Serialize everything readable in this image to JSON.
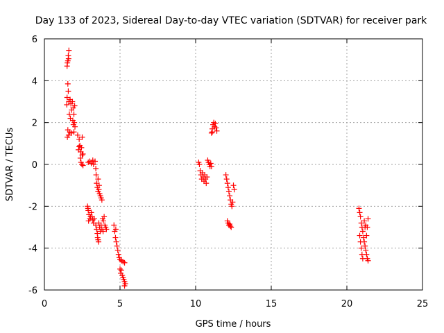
{
  "chart_data": {
    "type": "scatter",
    "title": "Day 133 of 2023, Sidereal Day-to-day VTEC variation (SDTVAR) for receiver park",
    "xlabel": "GPS time / hours",
    "ylabel": "SDTVAR / TECUs",
    "xlim": [
      0,
      25
    ],
    "ylim": [
      -6,
      6
    ],
    "xticks": [
      0,
      5,
      10,
      15,
      20,
      25
    ],
    "xtick_labels": [
      "0",
      "5",
      "10",
      "15",
      "20",
      "25"
    ],
    "yticks": [
      -6,
      -4,
      -2,
      0,
      2,
      4,
      6
    ],
    "ytick_labels": [
      "-6",
      "-4",
      "-2",
      "0",
      "2",
      "4",
      "6"
    ],
    "grid": true,
    "marker": "+",
    "series": [
      {
        "name": "SDTVAR",
        "color": "#ff0000",
        "points": [
          [
            1.5,
            4.7
          ],
          [
            1.55,
            4.95
          ],
          [
            1.58,
            5.2
          ],
          [
            1.62,
            5.45
          ],
          [
            1.6,
            5.05
          ],
          [
            1.52,
            4.85
          ],
          [
            1.55,
            3.85
          ],
          [
            1.58,
            3.5
          ],
          [
            1.5,
            3.2
          ],
          [
            1.62,
            3.0
          ],
          [
            1.48,
            2.85
          ],
          [
            1.7,
            3.1
          ],
          [
            1.75,
            2.9
          ],
          [
            1.8,
            2.6
          ],
          [
            1.85,
            3.0
          ],
          [
            1.9,
            2.7
          ],
          [
            1.95,
            2.4
          ],
          [
            2.0,
            2.8
          ],
          [
            1.72,
            2.2
          ],
          [
            1.88,
            2.1
          ],
          [
            1.65,
            2.4
          ],
          [
            1.92,
            1.9
          ],
          [
            1.98,
            2.0
          ],
          [
            2.02,
            1.8
          ],
          [
            1.55,
            1.65
          ],
          [
            1.6,
            1.4
          ],
          [
            1.52,
            1.3
          ],
          [
            1.68,
            1.55
          ],
          [
            1.8,
            1.5
          ],
          [
            1.95,
            1.55
          ],
          [
            2.2,
            1.4
          ],
          [
            2.3,
            1.2
          ],
          [
            2.35,
            0.9
          ],
          [
            2.25,
            0.7
          ],
          [
            2.4,
            0.6
          ],
          [
            2.45,
            0.8
          ],
          [
            2.5,
            1.3
          ],
          [
            2.55,
            0.5
          ],
          [
            2.38,
            0.3
          ],
          [
            2.42,
            0.1
          ],
          [
            2.48,
            0.0
          ],
          [
            2.55,
            -0.05
          ],
          [
            2.3,
            0.85
          ],
          [
            2.5,
            0.45
          ],
          [
            2.9,
            0.1
          ],
          [
            3.0,
            0.15
          ],
          [
            3.1,
            0.05
          ],
          [
            3.2,
            0.2
          ],
          [
            3.25,
            0.0
          ],
          [
            3.35,
            0.15
          ],
          [
            3.4,
            -0.2
          ],
          [
            3.42,
            -0.5
          ],
          [
            3.45,
            -0.9
          ],
          [
            3.5,
            -1.1
          ],
          [
            3.55,
            -1.3
          ],
          [
            3.6,
            -1.2
          ],
          [
            3.65,
            -1.4
          ],
          [
            3.7,
            -1.5
          ],
          [
            3.75,
            -1.6
          ],
          [
            3.8,
            -1.7
          ],
          [
            3.55,
            -0.7
          ],
          [
            3.62,
            -1.0
          ],
          [
            2.85,
            -2.0
          ],
          [
            2.9,
            -2.2
          ],
          [
            2.95,
            -2.4
          ],
          [
            3.0,
            -2.6
          ],
          [
            2.92,
            -2.7
          ],
          [
            3.05,
            -2.5
          ],
          [
            3.1,
            -2.3
          ],
          [
            3.15,
            -2.5
          ],
          [
            3.2,
            -2.65
          ],
          [
            3.25,
            -2.8
          ],
          [
            3.3,
            -2.6
          ],
          [
            2.88,
            -2.1
          ],
          [
            3.4,
            -2.9
          ],
          [
            3.45,
            -3.1
          ],
          [
            3.5,
            -3.3
          ],
          [
            3.55,
            -3.6
          ],
          [
            3.58,
            -3.7
          ],
          [
            3.52,
            -3.5
          ],
          [
            3.6,
            -2.8
          ],
          [
            3.65,
            -3.0
          ],
          [
            3.7,
            -3.2
          ],
          [
            3.75,
            -2.9
          ],
          [
            3.8,
            -3.1
          ],
          [
            3.85,
            -2.6
          ],
          [
            3.9,
            -2.7
          ],
          [
            3.95,
            -2.5
          ],
          [
            4.0,
            -2.9
          ],
          [
            4.05,
            -3.0
          ],
          [
            4.1,
            -3.1
          ],
          [
            3.88,
            -3.2
          ],
          [
            4.6,
            -2.9
          ],
          [
            4.65,
            -3.2
          ],
          [
            4.7,
            -3.5
          ],
          [
            4.75,
            -3.7
          ],
          [
            4.8,
            -3.9
          ],
          [
            4.85,
            -4.1
          ],
          [
            4.9,
            -4.3
          ],
          [
            4.95,
            -4.45
          ],
          [
            5.0,
            -4.55
          ],
          [
            5.1,
            -4.6
          ],
          [
            5.2,
            -4.65
          ],
          [
            5.3,
            -4.7
          ],
          [
            5.0,
            -5.0
          ],
          [
            5.05,
            -5.2
          ],
          [
            5.15,
            -5.3
          ],
          [
            5.2,
            -5.4
          ],
          [
            5.25,
            -5.5
          ],
          [
            5.3,
            -5.6
          ],
          [
            5.35,
            -5.7
          ],
          [
            5.3,
            -5.8
          ],
          [
            4.72,
            -3.1
          ],
          [
            5.08,
            -5.05
          ],
          [
            10.2,
            0.1
          ],
          [
            10.25,
            0.0
          ],
          [
            10.3,
            -0.3
          ],
          [
            10.35,
            -0.5
          ],
          [
            10.4,
            -0.7
          ],
          [
            10.45,
            -0.4
          ],
          [
            10.5,
            -0.6
          ],
          [
            10.55,
            -0.8
          ],
          [
            10.6,
            -0.5
          ],
          [
            10.65,
            -0.7
          ],
          [
            10.7,
            -0.9
          ],
          [
            10.75,
            -0.6
          ],
          [
            10.8,
            0.2
          ],
          [
            10.85,
            0.1
          ],
          [
            10.9,
            0.0
          ],
          [
            10.95,
            -0.1
          ],
          [
            11.0,
            0.05
          ],
          [
            11.05,
            -0.1
          ],
          [
            11.05,
            1.5
          ],
          [
            11.1,
            1.7
          ],
          [
            11.15,
            1.9
          ],
          [
            11.2,
            2.0
          ],
          [
            11.25,
            1.8
          ],
          [
            11.3,
            1.95
          ],
          [
            11.35,
            1.75
          ],
          [
            11.4,
            1.6
          ],
          [
            11.1,
            1.55
          ],
          [
            12.0,
            -0.5
          ],
          [
            12.05,
            -0.7
          ],
          [
            12.1,
            -0.9
          ],
          [
            12.15,
            -1.1
          ],
          [
            12.2,
            -1.3
          ],
          [
            12.25,
            -1.5
          ],
          [
            12.3,
            -1.7
          ],
          [
            12.35,
            -1.9
          ],
          [
            12.4,
            -2.0
          ],
          [
            12.45,
            -1.8
          ],
          [
            12.5,
            -1.0
          ],
          [
            12.55,
            -1.2
          ],
          [
            12.1,
            -2.7
          ],
          [
            12.15,
            -2.8
          ],
          [
            12.2,
            -2.9
          ],
          [
            12.25,
            -2.85
          ],
          [
            12.3,
            -2.95
          ],
          [
            12.35,
            -3.0
          ],
          [
            20.8,
            -2.1
          ],
          [
            20.85,
            -2.3
          ],
          [
            20.9,
            -2.5
          ],
          [
            20.95,
            -2.8
          ],
          [
            21.0,
            -3.0
          ],
          [
            21.05,
            -3.2
          ],
          [
            21.1,
            -3.5
          ],
          [
            21.15,
            -3.7
          ],
          [
            21.2,
            -3.9
          ],
          [
            21.25,
            -4.1
          ],
          [
            21.3,
            -4.3
          ],
          [
            21.35,
            -4.5
          ],
          [
            21.4,
            -4.6
          ],
          [
            20.85,
            -3.4
          ],
          [
            20.9,
            -3.7
          ],
          [
            20.95,
            -4.0
          ],
          [
            21.0,
            -4.3
          ],
          [
            21.05,
            -4.5
          ],
          [
            21.15,
            -2.7
          ],
          [
            21.25,
            -2.9
          ],
          [
            21.35,
            -3.0
          ],
          [
            21.4,
            -2.6
          ],
          [
            21.3,
            -3.4
          ],
          [
            21.2,
            -3.0
          ]
        ]
      }
    ]
  }
}
